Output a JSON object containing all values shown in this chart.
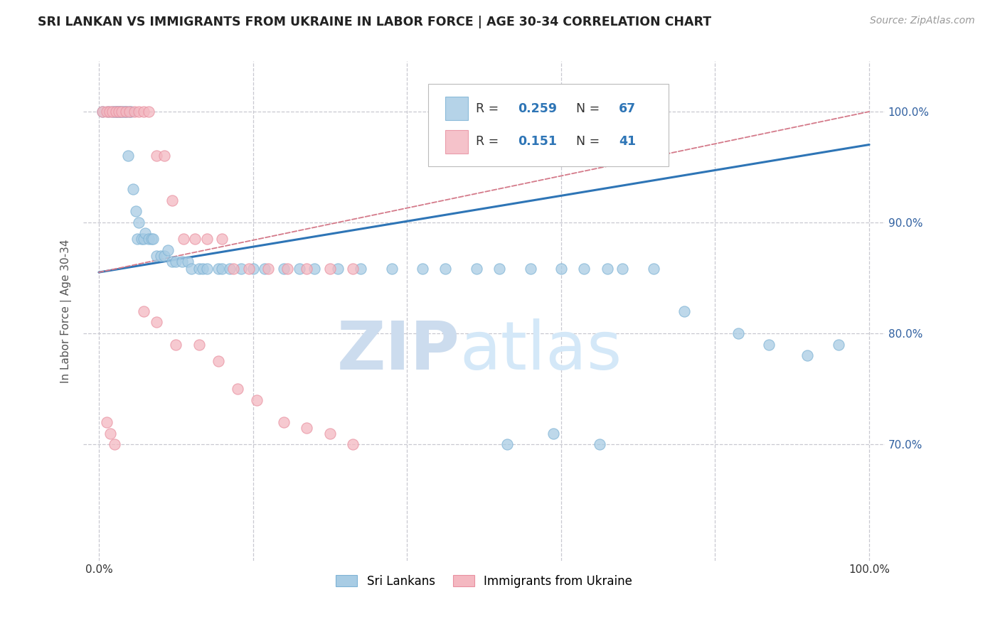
{
  "title": "SRI LANKAN VS IMMIGRANTS FROM UKRAINE IN LABOR FORCE | AGE 30-34 CORRELATION CHART",
  "source": "Source: ZipAtlas.com",
  "ylabel": "In Labor Force | Age 30-34",
  "xlim": [
    -0.02,
    1.02
  ],
  "ylim": [
    0.595,
    1.045
  ],
  "yticks": [
    0.7,
    0.8,
    0.9,
    1.0
  ],
  "ytick_labels": [
    "70.0%",
    "80.0%",
    "90.0%",
    "100.0%"
  ],
  "xticks": [
    0.0,
    1.0
  ],
  "xtick_labels": [
    "0.0%",
    "100.0%"
  ],
  "legend_blue_r_val": "0.259",
  "legend_blue_n_val": "67",
  "legend_pink_r_val": "0.151",
  "legend_pink_n_val": "41",
  "legend_label_blue": "Sri Lankans",
  "legend_label_pink": "Immigrants from Ukraine",
  "blue_color": "#a8cce4",
  "pink_color": "#f4b8c1",
  "blue_edge_color": "#7eb3d5",
  "pink_edge_color": "#e890a0",
  "blue_line_color": "#2e75b6",
  "pink_line_color": "#d47a8a",
  "watermark_zip": "ZIP",
  "watermark_atlas": "atlas",
  "background_color": "#ffffff",
  "grid_color": "#c8c8d0",
  "title_color": "#222222",
  "axis_label_color": "#555555",
  "right_tick_color": "#3060a0",
  "blue_scatter_x": [
    0.005,
    0.012,
    0.018,
    0.02,
    0.022,
    0.024,
    0.026,
    0.028,
    0.03,
    0.032,
    0.034,
    0.036,
    0.038,
    0.04,
    0.042,
    0.044,
    0.048,
    0.05,
    0.052,
    0.055,
    0.058,
    0.06,
    0.065,
    0.068,
    0.07,
    0.075,
    0.08,
    0.085,
    0.09,
    0.095,
    0.1,
    0.108,
    0.115,
    0.12,
    0.13,
    0.135,
    0.14,
    0.155,
    0.16,
    0.17,
    0.185,
    0.2,
    0.215,
    0.24,
    0.26,
    0.28,
    0.31,
    0.34,
    0.38,
    0.42,
    0.45,
    0.49,
    0.52,
    0.56,
    0.6,
    0.63,
    0.66,
    0.68,
    0.72,
    0.76,
    0.83,
    0.87,
    0.92,
    0.96,
    0.53,
    0.59,
    0.65
  ],
  "blue_scatter_y": [
    1.0,
    1.0,
    1.0,
    1.0,
    1.0,
    1.0,
    1.0,
    1.0,
    1.0,
    1.0,
    1.0,
    1.0,
    0.96,
    1.0,
    1.0,
    0.93,
    0.91,
    0.885,
    0.9,
    0.885,
    0.885,
    0.89,
    0.885,
    0.885,
    0.885,
    0.87,
    0.87,
    0.87,
    0.875,
    0.865,
    0.865,
    0.865,
    0.865,
    0.858,
    0.858,
    0.858,
    0.858,
    0.858,
    0.858,
    0.858,
    0.858,
    0.858,
    0.858,
    0.858,
    0.858,
    0.858,
    0.858,
    0.858,
    0.858,
    0.858,
    0.858,
    0.858,
    0.858,
    0.858,
    0.858,
    0.858,
    0.858,
    0.858,
    0.858,
    0.82,
    0.8,
    0.79,
    0.78,
    0.79,
    0.7,
    0.71,
    0.7
  ],
  "pink_scatter_x": [
    0.005,
    0.01,
    0.014,
    0.018,
    0.022,
    0.026,
    0.03,
    0.035,
    0.04,
    0.046,
    0.052,
    0.058,
    0.065,
    0.075,
    0.085,
    0.095,
    0.11,
    0.125,
    0.14,
    0.16,
    0.175,
    0.195,
    0.22,
    0.245,
    0.27,
    0.3,
    0.33,
    0.058,
    0.075,
    0.1,
    0.13,
    0.155,
    0.18,
    0.205,
    0.24,
    0.27,
    0.3,
    0.33,
    0.01,
    0.015,
    0.02
  ],
  "pink_scatter_y": [
    1.0,
    1.0,
    1.0,
    1.0,
    1.0,
    1.0,
    1.0,
    1.0,
    1.0,
    1.0,
    1.0,
    1.0,
    1.0,
    0.96,
    0.96,
    0.92,
    0.885,
    0.885,
    0.885,
    0.885,
    0.858,
    0.858,
    0.858,
    0.858,
    0.858,
    0.858,
    0.858,
    0.82,
    0.81,
    0.79,
    0.79,
    0.775,
    0.75,
    0.74,
    0.72,
    0.715,
    0.71,
    0.7,
    0.72,
    0.71,
    0.7
  ],
  "blue_line_x0": 0.0,
  "blue_line_x1": 1.0,
  "blue_line_y0": 0.855,
  "blue_line_y1": 0.97,
  "pink_line_x0": 0.0,
  "pink_line_x1": 0.38,
  "pink_line_y0": 0.855,
  "pink_line_y1": 0.91
}
